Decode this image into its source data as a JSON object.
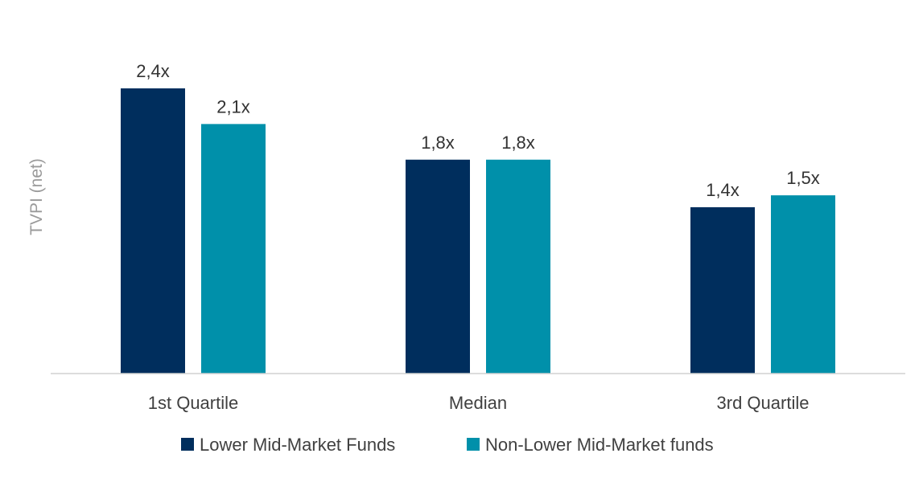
{
  "chart_data": {
    "type": "bar",
    "title": "",
    "xlabel": "",
    "ylabel": "TVPI (net)",
    "categories": [
      "1st Quartile",
      "Median",
      "3rd Quartile"
    ],
    "series": [
      {
        "name": "Lower Mid-Market Funds",
        "values": [
          2.4,
          1.8,
          1.4
        ],
        "labels": [
          "2,4x",
          "1,8x",
          "1,4x"
        ],
        "color": "#002e5d"
      },
      {
        "name": "Non-Lower Mid-Market funds",
        "values": [
          2.1,
          1.8,
          1.5
        ],
        "labels": [
          "2,1x",
          "1,8x",
          "1,5x"
        ],
        "color": "#0090aa"
      }
    ],
    "ylim": [
      0,
      2.4
    ],
    "grid": false,
    "legend_position": "bottom-center",
    "axis_color": "#d0d0d0"
  }
}
